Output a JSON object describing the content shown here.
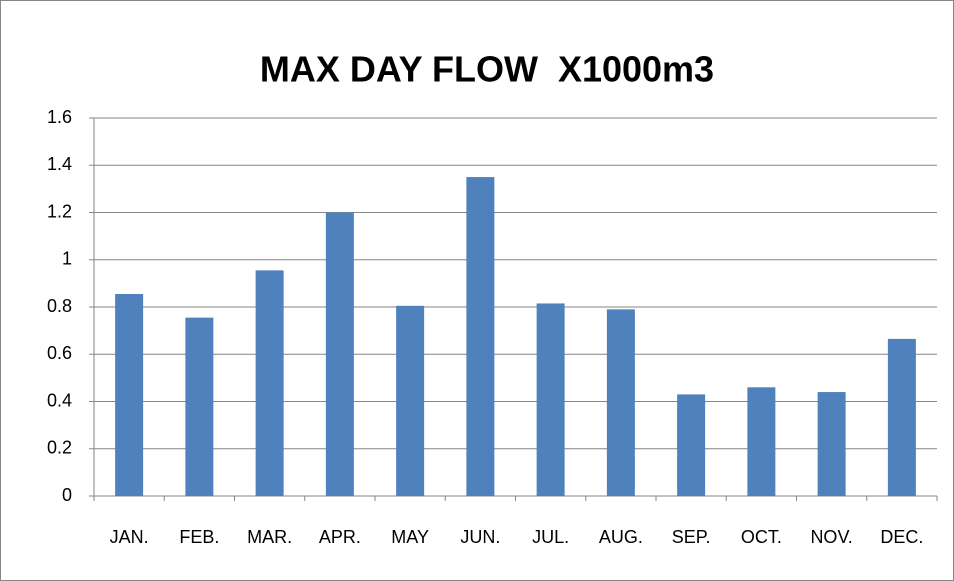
{
  "chart_data": {
    "type": "bar",
    "title": "MAX DAY FLOW  X1000m3",
    "categories": [
      "JAN.",
      "FEB.",
      "MAR.",
      "APR.",
      "MAY",
      "JUN.",
      "JUL.",
      "AUG.",
      "SEP.",
      "OCT.",
      "NOV.",
      "DEC."
    ],
    "values": [
      0.855,
      0.755,
      0.955,
      1.2,
      0.805,
      1.35,
      0.815,
      0.79,
      0.43,
      0.46,
      0.44,
      0.665
    ],
    "color": "#4f81bd",
    "ylim": [
      0,
      1.6
    ],
    "yticks": [
      0,
      0.2,
      0.4,
      0.6,
      0.8,
      1,
      1.2,
      1.4,
      1.6
    ],
    "grid": true
  }
}
